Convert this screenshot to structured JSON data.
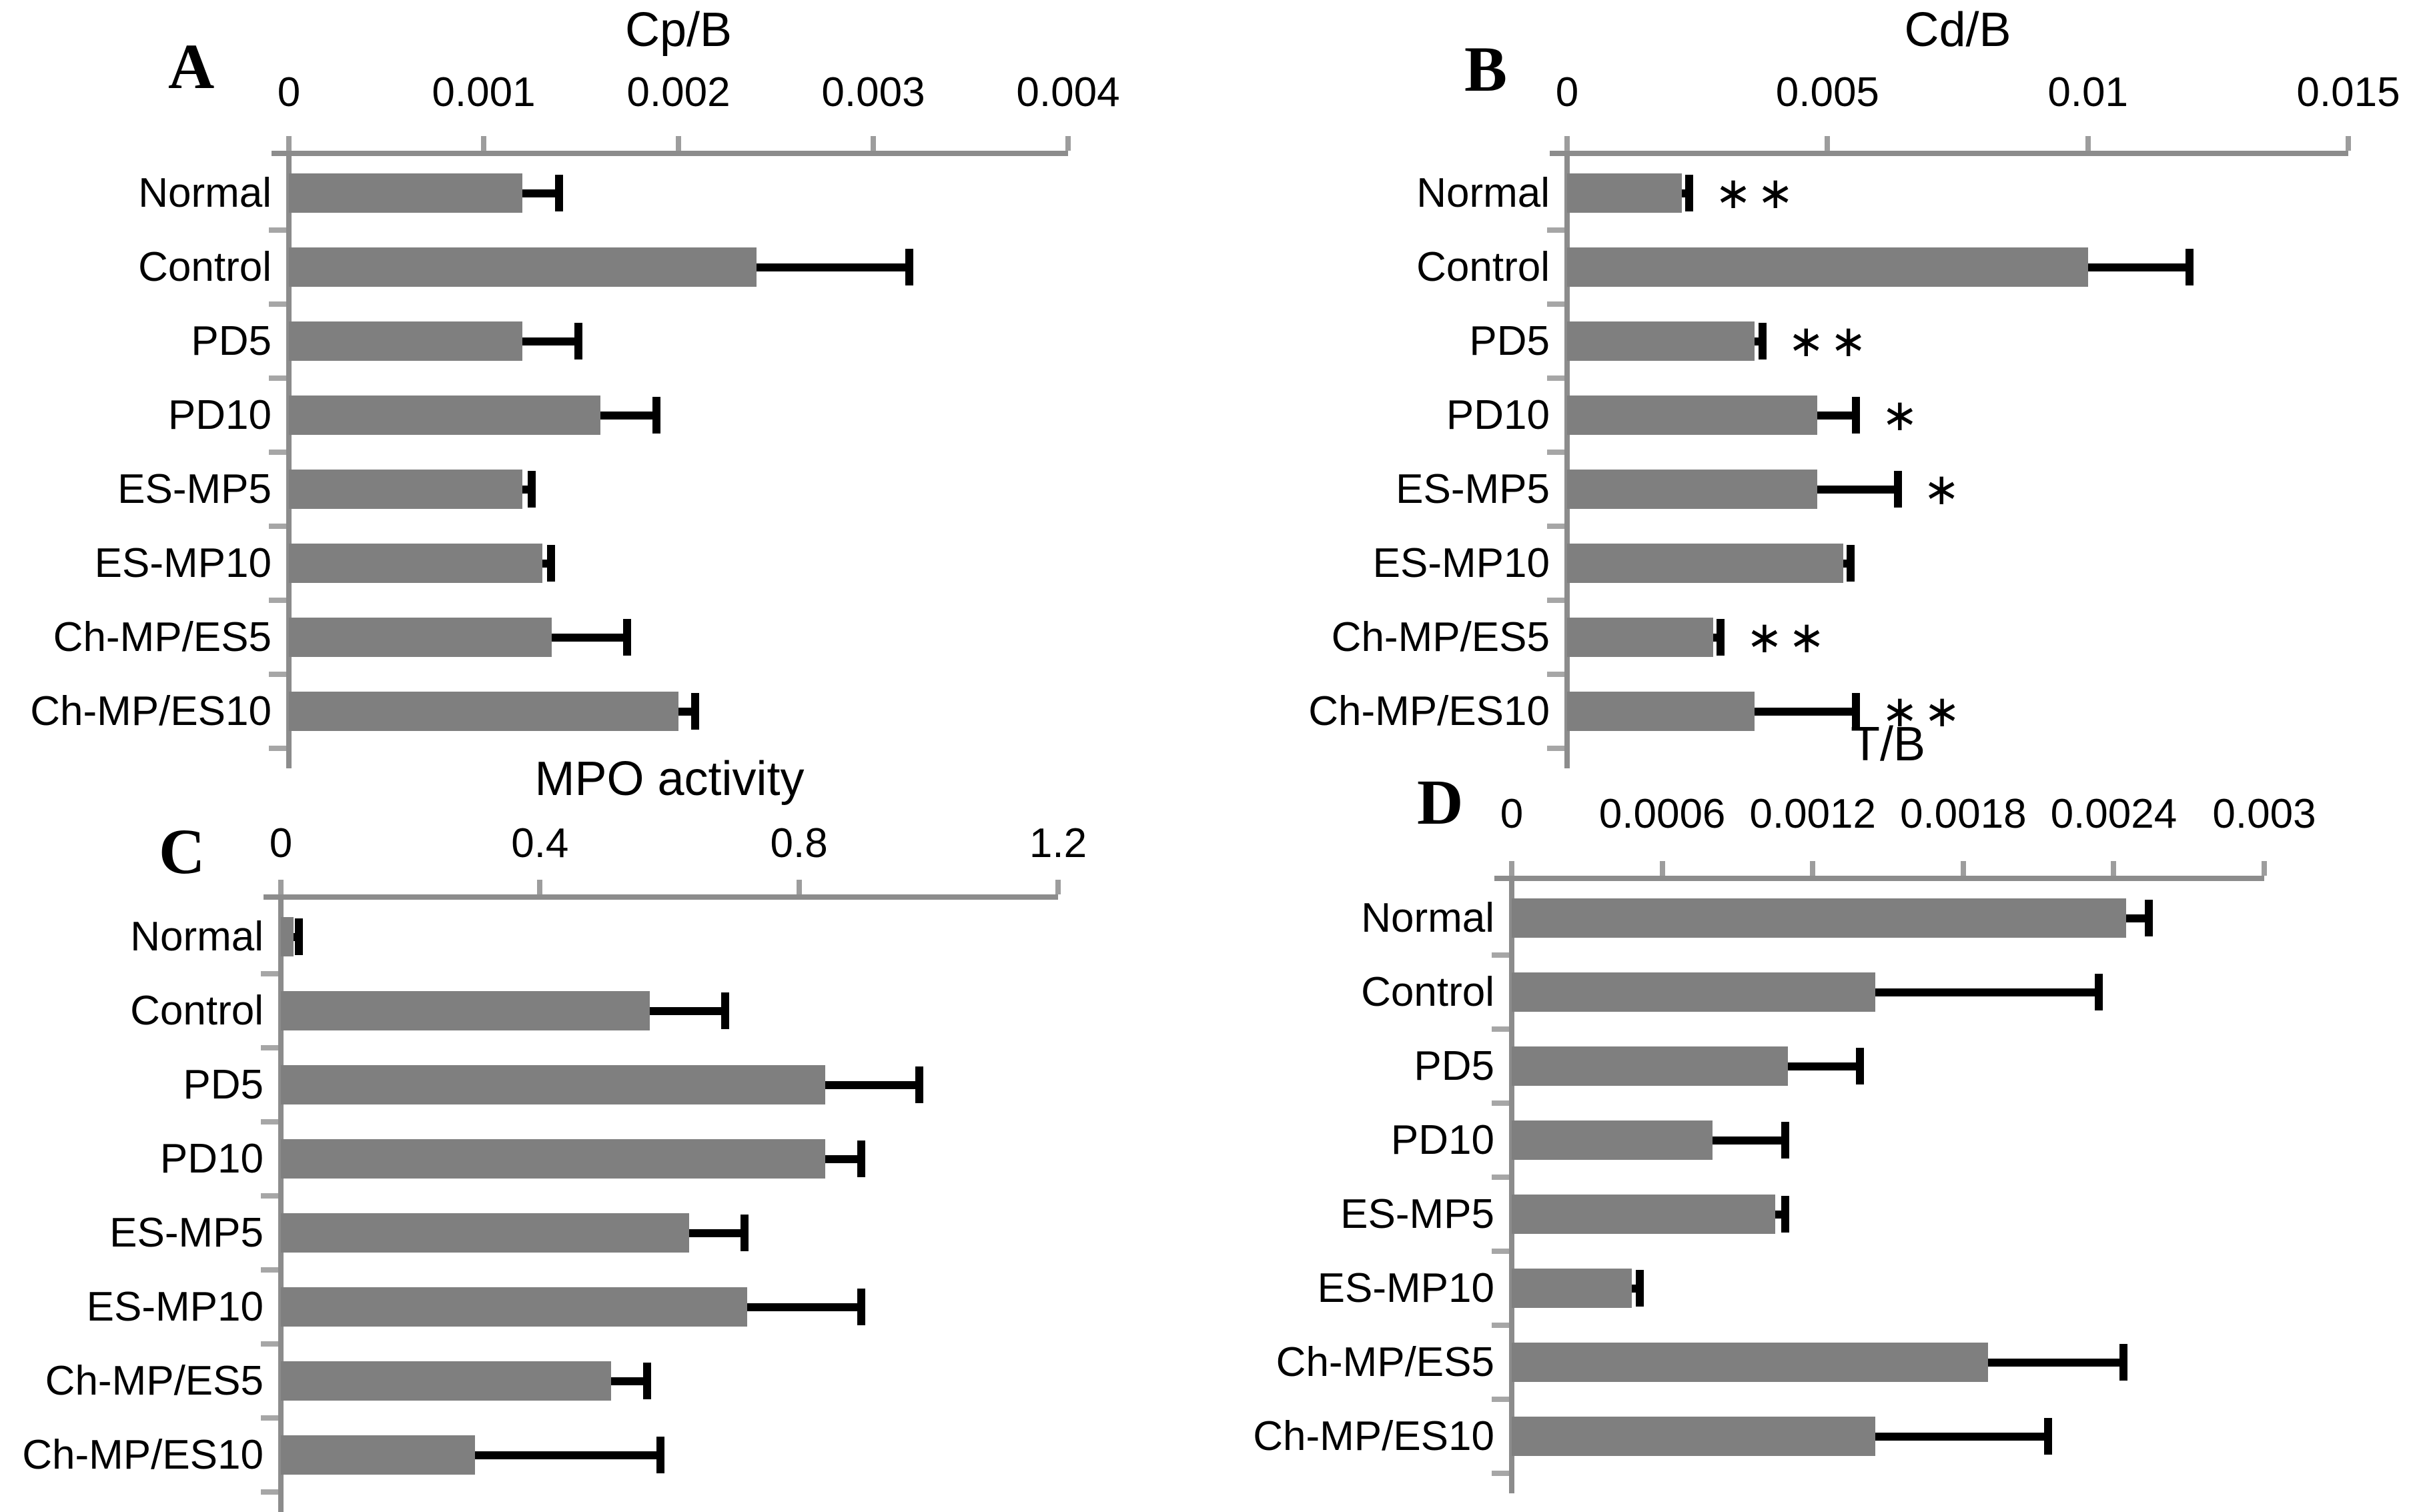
{
  "colors": {
    "bar": "#7f7f7f",
    "axis": "#8c8c8c",
    "tick": "#9d9d9d",
    "stub": "#a6a6a6",
    "error": "#000000",
    "text": "#000000"
  },
  "chart_data": [
    {
      "type": "bar",
      "orientation": "horizontal",
      "panel": "A",
      "title": "Cp/B",
      "xlim": [
        0,
        0.004
      ],
      "xticks": [
        0,
        0.001,
        0.002,
        0.003,
        0.004
      ],
      "xtick_labels": [
        "0",
        "0.001",
        "0.002",
        "0.003",
        "0.004"
      ],
      "categories": [
        "Normal",
        "Control",
        "PD5",
        "PD10",
        "ES-MP5",
        "ES-MP10",
        "Ch-MP/ES5",
        "Ch-MP/ES10"
      ],
      "values": [
        0.0012,
        0.0024,
        0.0012,
        0.0016,
        0.0012,
        0.0013,
        0.00135,
        0.002
      ],
      "errors": [
        0.0002,
        0.0008,
        0.0003,
        0.0003,
        6e-05,
        6e-05,
        0.0004,
        0.0001
      ],
      "significance": [
        "",
        "",
        "",
        "",
        "",
        "",
        "",
        ""
      ],
      "grid": false,
      "legend": false
    },
    {
      "type": "bar",
      "orientation": "horizontal",
      "panel": "B",
      "title": "Cd/B",
      "xlim": [
        0,
        0.015
      ],
      "xticks": [
        0,
        0.005,
        0.01,
        0.015
      ],
      "xtick_labels": [
        "0",
        "0.005",
        "0.01",
        "0.015"
      ],
      "categories": [
        "Normal",
        "Control",
        "PD5",
        "PD10",
        "ES-MP5",
        "ES-MP10",
        "Ch-MP/ES5",
        "Ch-MP/ES10"
      ],
      "values": [
        0.0022,
        0.01,
        0.0036,
        0.0048,
        0.0048,
        0.0053,
        0.0028,
        0.0036
      ],
      "errors": [
        0.0002,
        0.002,
        0.0002,
        0.0008,
        0.0016,
        0.0002,
        0.0002,
        0.002
      ],
      "significance": [
        "**",
        "",
        "**",
        "*",
        "*",
        "",
        "**",
        "**"
      ],
      "grid": false,
      "legend": false
    },
    {
      "type": "bar",
      "orientation": "horizontal",
      "panel": "C",
      "title": "MPO activity",
      "xlim": [
        0,
        1.2
      ],
      "xticks": [
        0,
        0.4,
        0.8,
        1.2
      ],
      "xtick_labels": [
        "0",
        "0.4",
        "0.8",
        "1.2"
      ],
      "categories": [
        "Normal",
        "Control",
        "PD5",
        "PD10",
        "ES-MP5",
        "ES-MP10",
        "Ch-MP/ES5",
        "Ch-MP/ES10"
      ],
      "values": [
        0.02,
        0.57,
        0.84,
        0.84,
        0.63,
        0.72,
        0.51,
        0.3
      ],
      "errors": [
        0.012,
        0.12,
        0.15,
        0.06,
        0.09,
        0.18,
        0.06,
        0.29
      ],
      "significance": [
        "",
        "",
        "",
        "",
        "",
        "",
        "",
        ""
      ],
      "grid": false,
      "legend": false
    },
    {
      "type": "bar",
      "orientation": "horizontal",
      "panel": "D",
      "title": "T/B",
      "xlim": [
        0,
        0.003
      ],
      "xticks": [
        0,
        0.0006,
        0.0012,
        0.0018,
        0.0024,
        0.003
      ],
      "xtick_labels": [
        "0",
        "0.0006",
        "0.0012",
        "0.0018",
        "0.0024",
        "0.003"
      ],
      "categories": [
        "Normal",
        "Control",
        "PD5",
        "PD10",
        "ES-MP5",
        "ES-MP10",
        "Ch-MP/ES5",
        "Ch-MP/ES10"
      ],
      "values": [
        0.00245,
        0.00145,
        0.0011,
        0.0008,
        0.00105,
        0.00048,
        0.0019,
        0.00145
      ],
      "errors": [
        0.0001,
        0.0009,
        0.0003,
        0.0003,
        5e-05,
        4e-05,
        0.00055,
        0.0007
      ],
      "significance": [
        "",
        "",
        "",
        "",
        "",
        "",
        "",
        ""
      ],
      "grid": false,
      "legend": false
    }
  ]
}
